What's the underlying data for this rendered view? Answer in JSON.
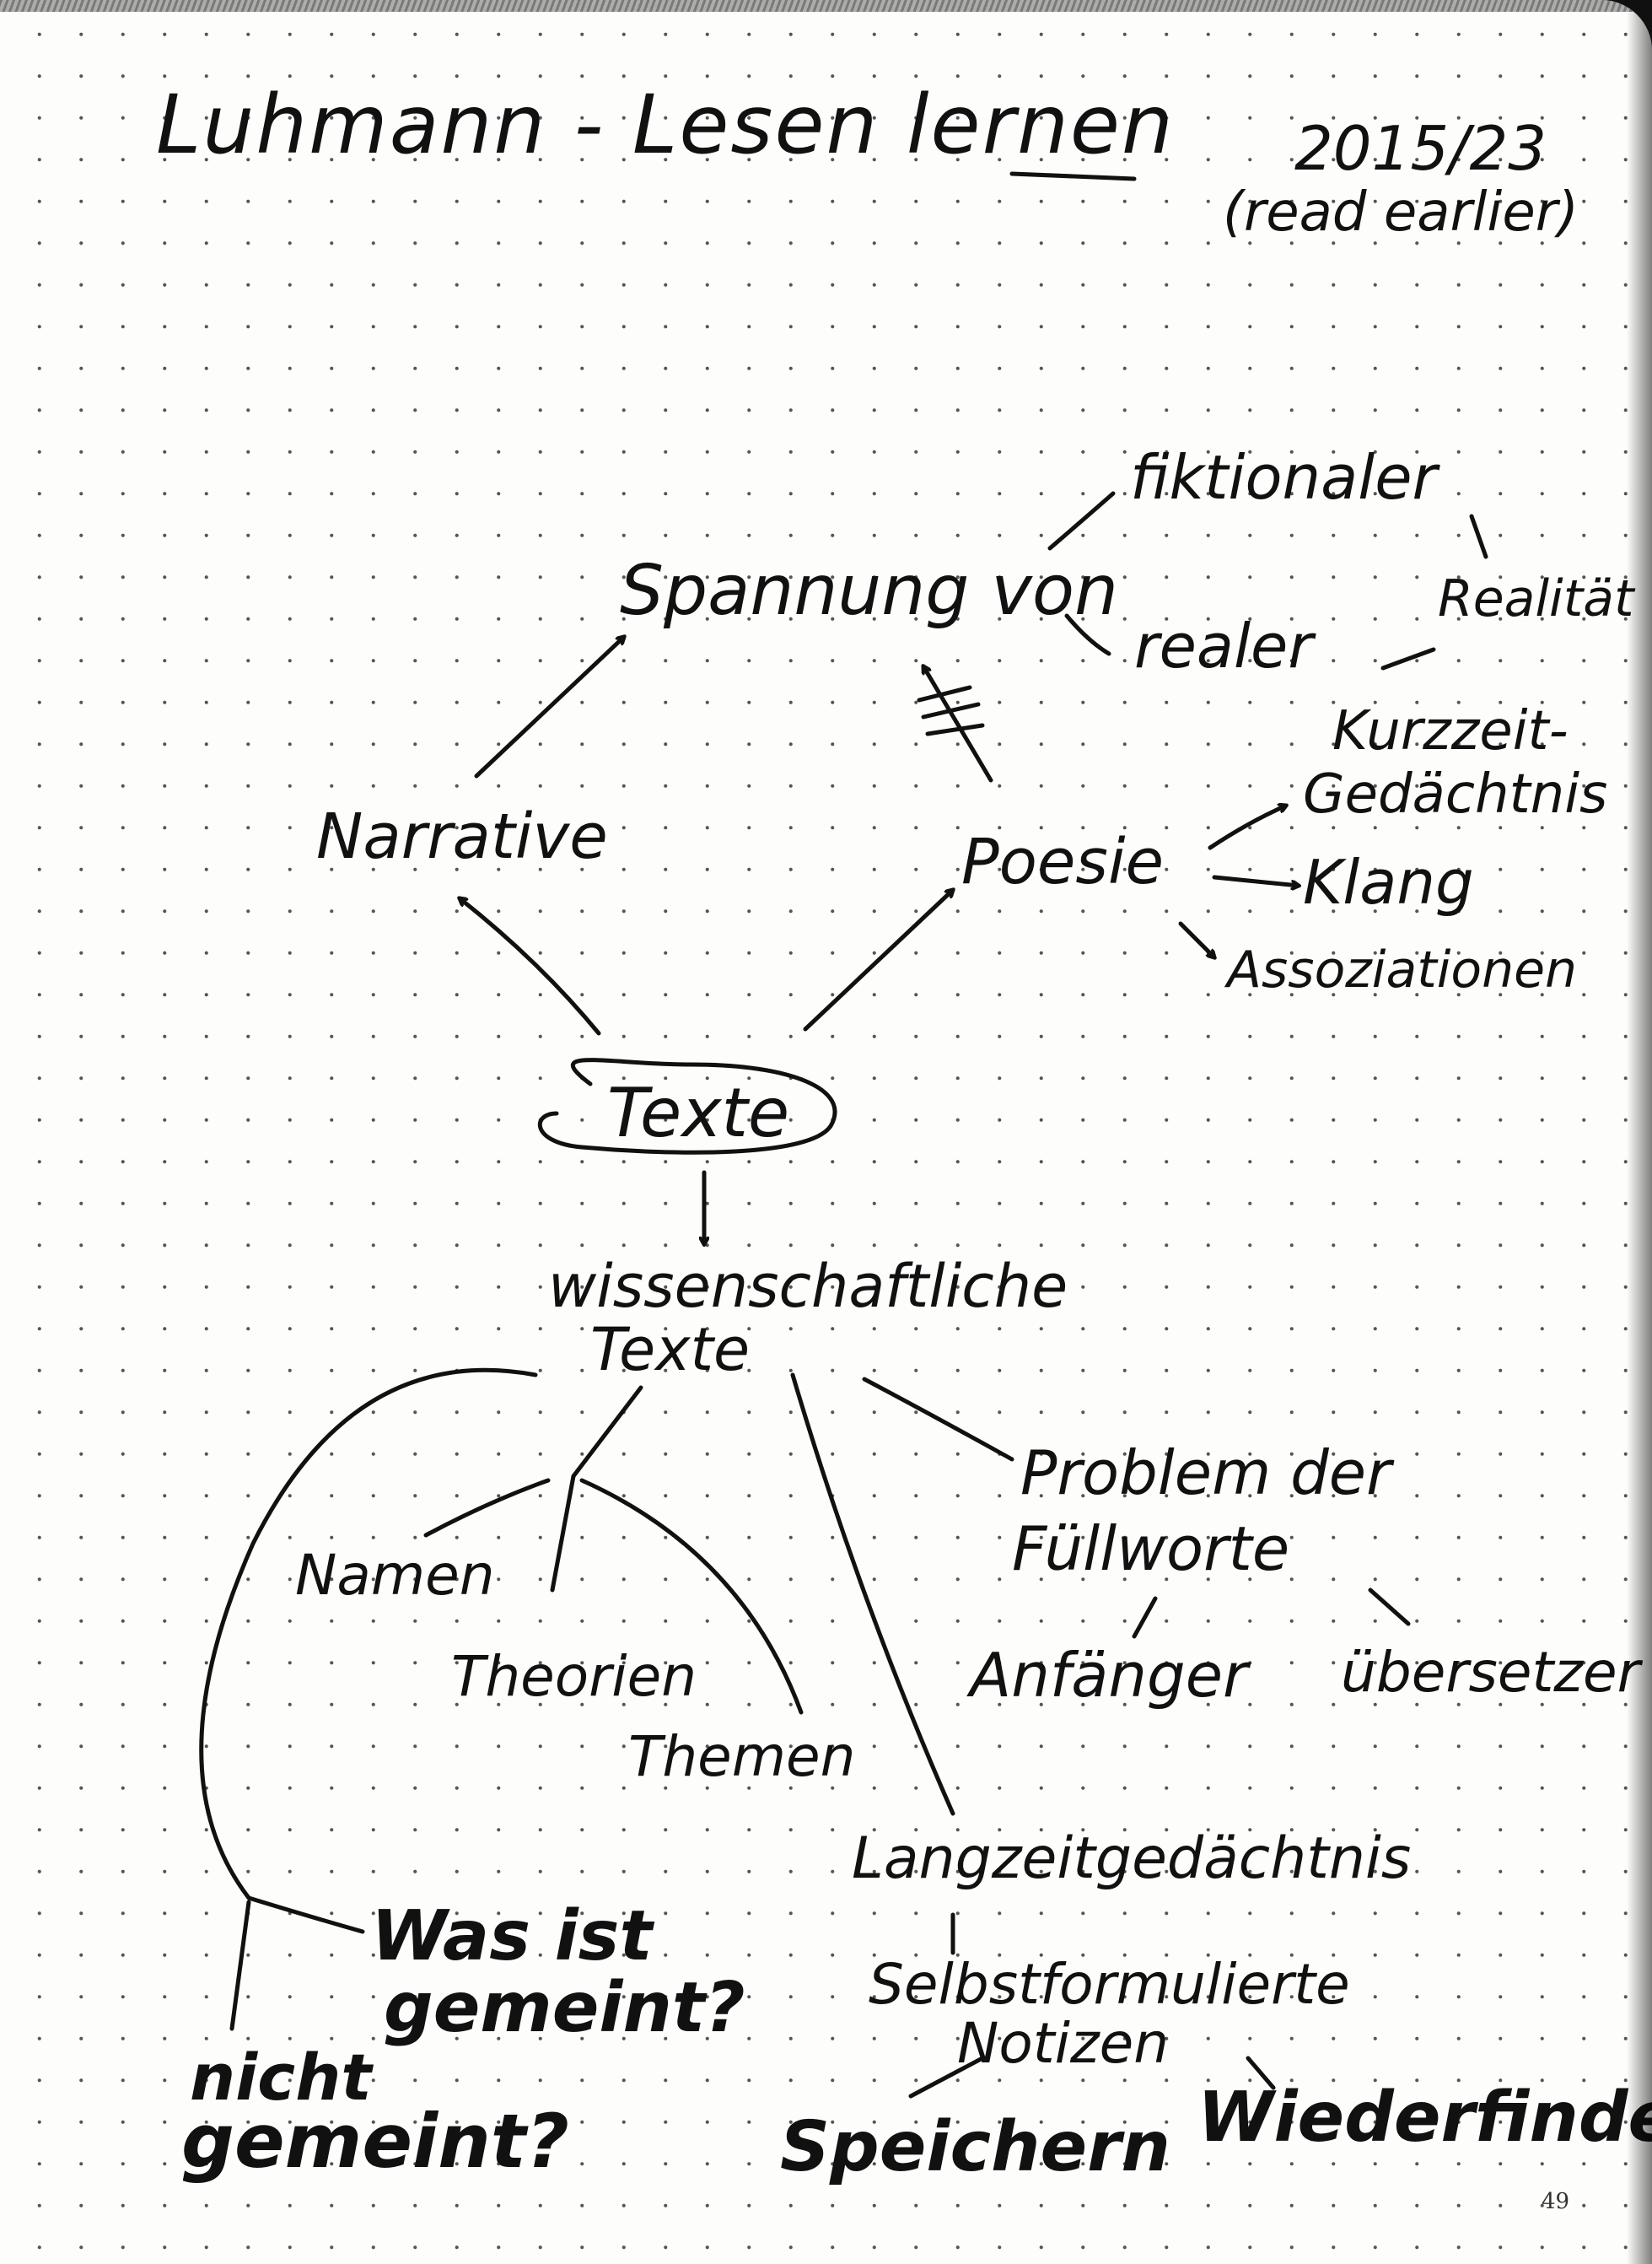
{
  "header": {
    "title": "Luhmann - Lesen lernen",
    "date": "2015/23",
    "note": "(read earlier)"
  },
  "nodes": {
    "spannung": "Spannung von",
    "fiktionaler": "fiktionaler",
    "realitaet": "Realität",
    "realer": "realer",
    "narrative": "Narrative",
    "poesie": "Poesie",
    "kurzzeit": "Kurzzeit-",
    "gedaechtnis": "Gedächtnis",
    "klang": "Klang",
    "assoziationen": "Assoziationen",
    "texte": "Texte",
    "wiss_line1": "wissenschaftliche",
    "wiss_line2": "Texte",
    "problem_line1": "Problem der",
    "problem_line2": "Füllworte",
    "anfaenger": "Anfänger",
    "uebersetzer": "übersetzer",
    "namen": "Namen",
    "theorien": "Theorien",
    "themen": "Themen",
    "langzeit": "Langzeitgedächtnis",
    "selbst": "Selbstformulierte",
    "notizen": "Notizen",
    "speichern": "Speichern",
    "wiederfinden": "Wiederfinden",
    "was_line1": "Was ist",
    "was_line2": "gemeint?",
    "nicht_line1": "nicht",
    "nicht_line2": "gemeint?"
  },
  "page_number": "49"
}
